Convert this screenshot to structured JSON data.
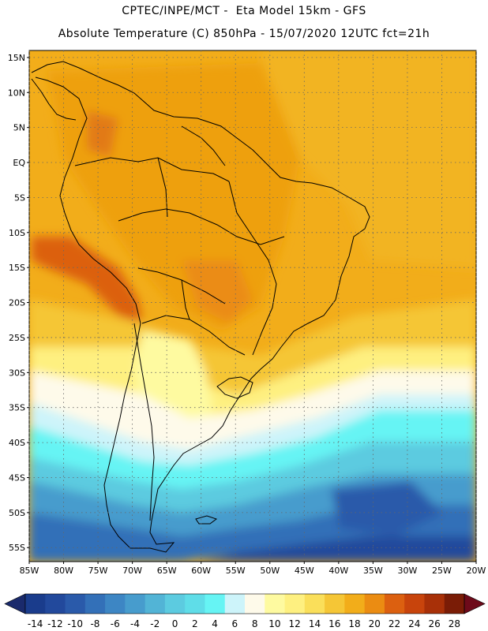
{
  "header": {
    "line1": "CPTEC/INPE/MCT -  Eta Model 15km - GFS",
    "line2": "Absolute Temperature (C) 850hPa - 15/07/2020 12UTC fct=21h"
  },
  "map": {
    "lat_labels": [
      "15N",
      "10N",
      "5N",
      "EQ",
      "5S",
      "10S",
      "15S",
      "20S",
      "25S",
      "30S",
      "35S",
      "40S",
      "45S",
      "50S",
      "55S"
    ],
    "lon_labels": [
      "85W",
      "80W",
      "75W",
      "70W",
      "65W",
      "60W",
      "55W",
      "50W",
      "45W",
      "40W",
      "35W",
      "30W",
      "25W",
      "20W"
    ],
    "lon_range": [
      -85,
      -20
    ],
    "lat_range": [
      -57,
      16
    ]
  },
  "colorbar": {
    "labels": [
      "-14",
      "-12",
      "-10",
      "-8",
      "-6",
      "-4",
      "-2",
      "0",
      "2",
      "4",
      "6",
      "8",
      "10",
      "12",
      "14",
      "16",
      "18",
      "20",
      "22",
      "24",
      "26",
      "28"
    ],
    "colors": [
      "#1a3c8c",
      "#22499c",
      "#2a5aaa",
      "#3370b8",
      "#3d86c4",
      "#479ccd",
      "#52b4d6",
      "#5ccbe0",
      "#5fdde8",
      "#66f4f4",
      "#cdf4fa",
      "#fefaea",
      "#fefaa0",
      "#fef080",
      "#fadf5a",
      "#f5c636",
      "#f2ad1a",
      "#eb8c12",
      "#dc6010",
      "#c8440c",
      "#a83008",
      "#7a1c06"
    ],
    "min_arrow_color": "#1a2a6c",
    "max_arrow_color": "#6e0a1a"
  }
}
